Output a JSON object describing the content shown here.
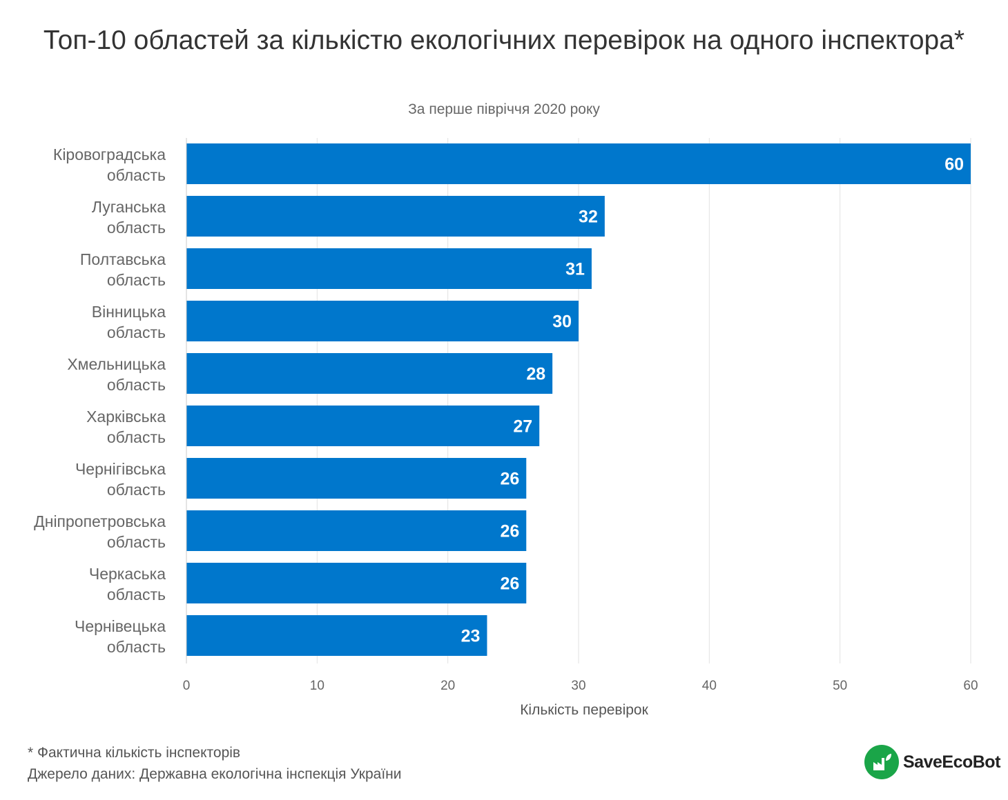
{
  "chart_data": {
    "type": "bar",
    "orientation": "horizontal",
    "title": "Топ-10 областей за кількістю екологічних перевірок на одного інспектора*",
    "subtitle": "За перше півріччя 2020 року",
    "categories": [
      "Кіровоградська область",
      "Луганська область",
      "Полтавська область",
      "Вінницька область",
      "Хмельницька область",
      "Харківська область",
      "Чернігівська область",
      "Дніпропетровська область",
      "Черкаська область",
      "Чернівецька область"
    ],
    "category_lines": [
      [
        "Кіровоградська",
        "область"
      ],
      [
        "Луганська",
        "область"
      ],
      [
        "Полтавська",
        "область"
      ],
      [
        "Вінницька",
        "область"
      ],
      [
        "Хмельницька",
        "область"
      ],
      [
        "Харківська",
        "область"
      ],
      [
        "Чернігівська",
        "область"
      ],
      [
        "Дніпропетровська",
        "область"
      ],
      [
        "Черкаська",
        "область"
      ],
      [
        "Чернівецька",
        "область"
      ]
    ],
    "values": [
      60,
      32,
      31,
      30,
      28,
      27,
      26,
      26,
      26,
      23
    ],
    "xlabel": "Кількість перевірок",
    "ylabel": "",
    "xlim": [
      0,
      60
    ],
    "xticks": [
      0,
      10,
      20,
      30,
      40,
      50,
      60
    ],
    "grid": true,
    "bar_color": "#0077cc",
    "data_labels": true
  },
  "footnote": {
    "note": "* Фактична кількість інспекторів",
    "source": "Джерело даних: Державна екологічна інспекція України"
  },
  "logo": {
    "text_bold": "Save",
    "text_rest": "EcoBot",
    "color": "#1aa548",
    "icon": "factory-leaf-icon"
  }
}
